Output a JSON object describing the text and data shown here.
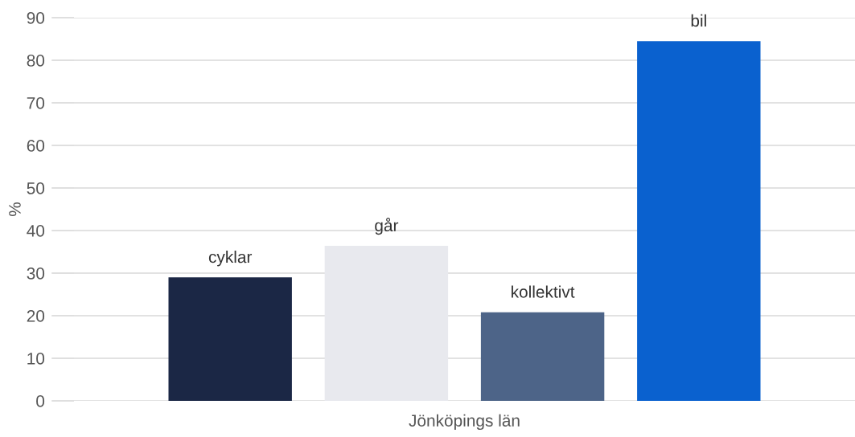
{
  "chart_data": {
    "type": "bar",
    "ylabel": "%",
    "categories": [
      "Jönköpings län"
    ],
    "series": [
      {
        "name": "cyklar",
        "color": "#1b2745",
        "values": [
          29.0
        ]
      },
      {
        "name": "går",
        "color": "#e8e9ee",
        "values": [
          36.4
        ]
      },
      {
        "name": "kollektivt",
        "color": "#4d6488",
        "values": [
          20.8
        ]
      },
      {
        "name": "bil",
        "color": "#0a61cf",
        "values": [
          84.5
        ]
      }
    ],
    "ylim": [
      0,
      90
    ],
    "yticks": [
      0,
      10,
      20,
      30,
      40,
      50,
      60,
      70,
      80,
      90
    ],
    "grid": "y",
    "legend": false
  }
}
